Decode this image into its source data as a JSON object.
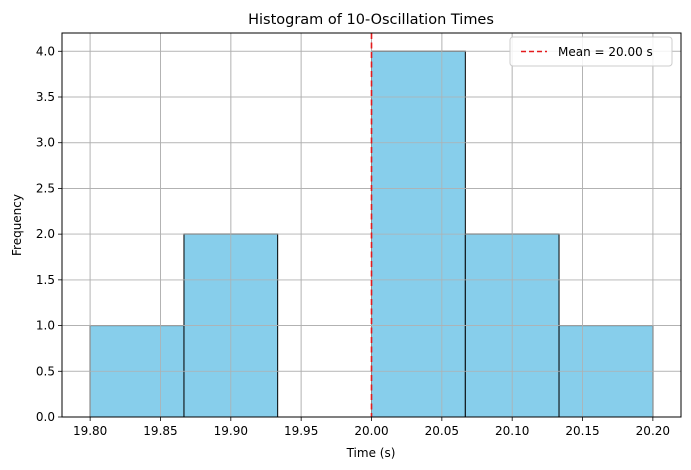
{
  "chart_data": {
    "type": "bar",
    "title": "Histogram of 10-Oscillation Times",
    "xlabel": "Time (s)",
    "ylabel": "Frequency",
    "bin_edges": [
      19.8,
      19.8667,
      19.9333,
      20.0,
      20.0667,
      20.1333,
      20.2
    ],
    "counts": [
      1,
      2,
      0,
      4,
      2,
      1
    ],
    "xlim": [
      19.78,
      20.22
    ],
    "ylim": [
      0,
      4.2
    ],
    "xticks": [
      "19.80",
      "19.85",
      "19.90",
      "19.95",
      "20.00",
      "20.05",
      "20.10",
      "20.15",
      "20.20"
    ],
    "yticks": [
      "0.0",
      "0.5",
      "1.0",
      "1.5",
      "2.0",
      "2.5",
      "3.0",
      "3.5",
      "4.0"
    ],
    "grid": true,
    "mean_line": {
      "x": 20.0,
      "label": "Mean = 20.00 s",
      "color": "#e41a1c"
    },
    "legend_position": "top-right",
    "bar_color": "#87ceeb",
    "bar_edge_color": "#000000"
  }
}
